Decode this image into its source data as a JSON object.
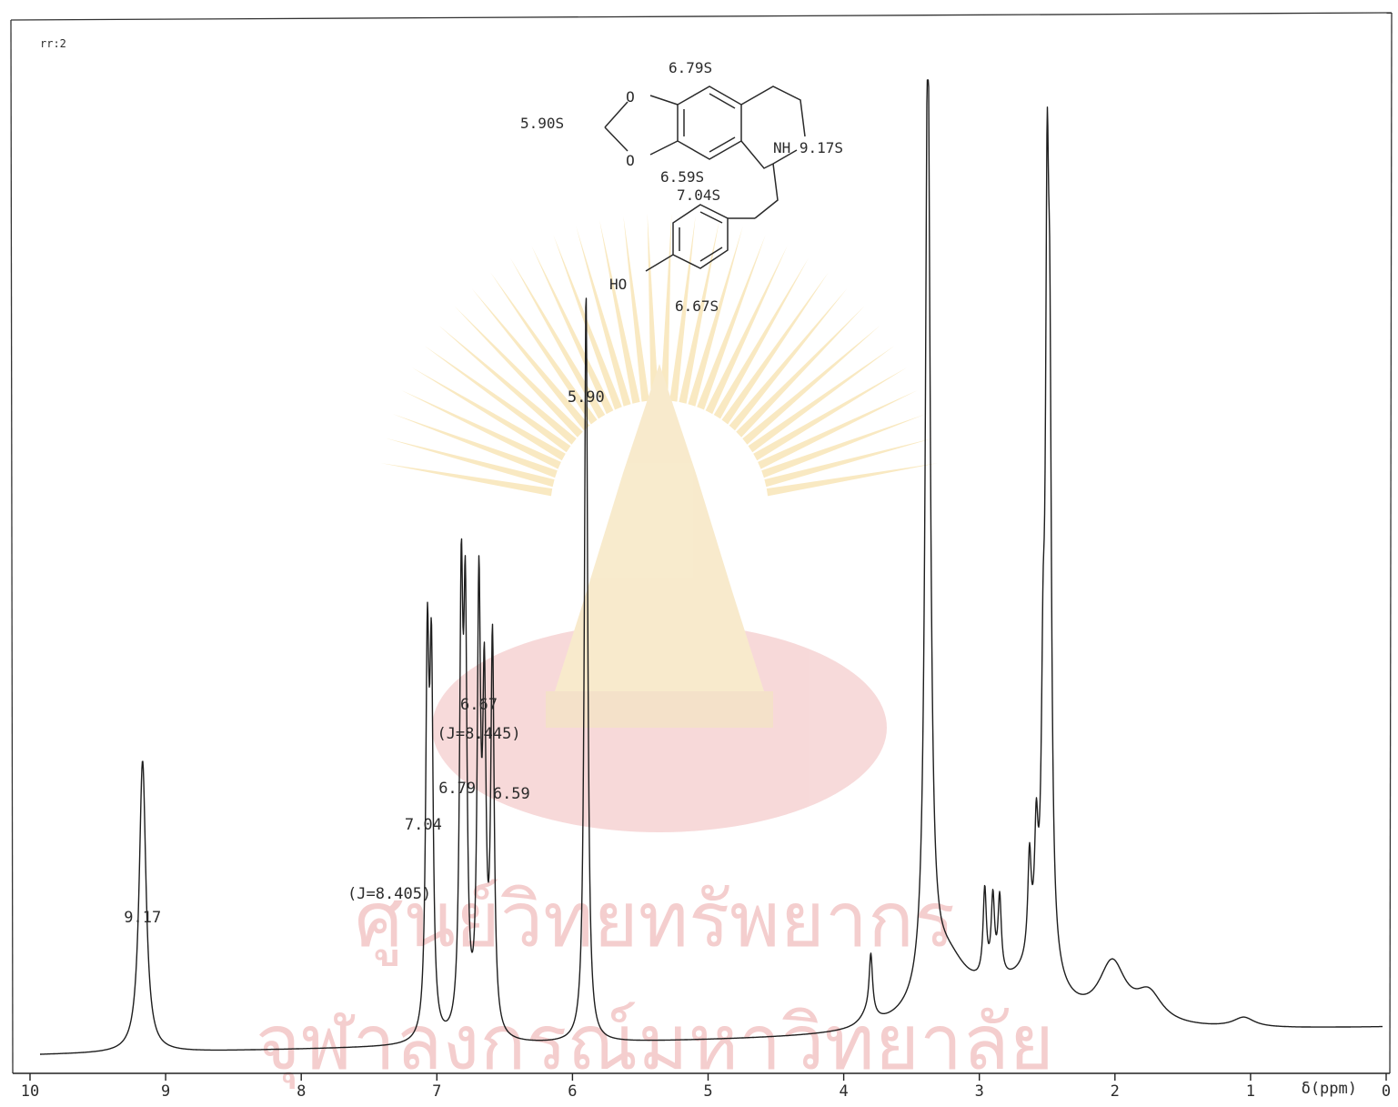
{
  "corner_mark": "rr:2",
  "chart_data": {
    "type": "line",
    "xlabel": "δ(ppm)",
    "xlim": [
      10,
      0
    ],
    "x_reversed": true,
    "x_ticks": [
      10,
      9,
      8,
      7,
      6,
      5,
      4,
      3,
      2,
      1,
      0
    ],
    "x_tick_labels": [
      "10",
      "9",
      "8",
      "7",
      "6",
      "5",
      "4",
      "3",
      "2",
      "1",
      "0"
    ],
    "grid": false,
    "peaks": [
      {
        "ppm": 9.17,
        "rel_height": 0.3
      },
      {
        "ppm": 7.07,
        "rel_height": 0.38
      },
      {
        "ppm": 7.04,
        "rel_height": 0.36
      },
      {
        "ppm": 6.82,
        "rel_height": 0.43
      },
      {
        "ppm": 6.79,
        "rel_height": 0.4
      },
      {
        "ppm": 6.69,
        "rel_height": 0.44
      },
      {
        "ppm": 6.65,
        "rel_height": 0.33
      },
      {
        "ppm": 6.59,
        "rel_height": 0.4
      },
      {
        "ppm": 5.9,
        "rel_height": 0.77
      },
      {
        "ppm": 3.8,
        "rel_height": 0.06
      },
      {
        "ppm": 3.38,
        "rel_height": 1.0
      },
      {
        "ppm": 2.96,
        "rel_height": 0.09
      },
      {
        "ppm": 2.9,
        "rel_height": 0.08
      },
      {
        "ppm": 2.85,
        "rel_height": 0.08
      },
      {
        "ppm": 2.63,
        "rel_height": 0.1
      },
      {
        "ppm": 2.58,
        "rel_height": 0.11
      },
      {
        "ppm": 2.53,
        "rel_height": 0.22
      },
      {
        "ppm": 2.5,
        "rel_height": 0.66
      },
      {
        "ppm": 2.48,
        "rel_height": 0.48
      },
      {
        "ppm": 2.02,
        "rel_height": 0.06
      },
      {
        "ppm": 1.75,
        "rel_height": 0.03
      },
      {
        "ppm": 1.05,
        "rel_height": 0.01
      }
    ],
    "annotations": [
      {
        "text": "9.17",
        "ppm": 9.17
      },
      {
        "text": "(J=8.405)",
        "ppm": 7.35
      },
      {
        "text": "7.04",
        "ppm": 7.1
      },
      {
        "text": "6.79",
        "ppm": 6.85
      },
      {
        "text": "6.67",
        "ppm": 6.69
      },
      {
        "text": "(J=8.445)",
        "ppm": 6.69
      },
      {
        "text": "6.59",
        "ppm": 6.45
      },
      {
        "text": "5.90",
        "ppm": 5.9
      }
    ]
  },
  "structure": {
    "labels": [
      "6.79S",
      "5.90S",
      "NH 9.17S",
      "6.59S",
      "7.04S",
      "HO",
      "6.67S"
    ],
    "atom_O": "O"
  },
  "watermark": {
    "line1": "ศูนย์วิทยทรัพยากร",
    "line2": "จุฬาลงกรณ์มหาวิทยาลัย"
  }
}
